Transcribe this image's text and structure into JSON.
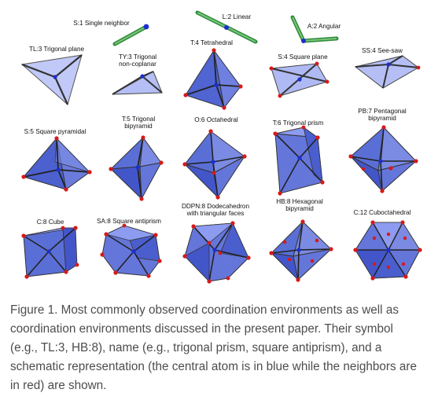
{
  "figure": {
    "labels": {
      "s1": "S:1 Single neighbor",
      "l2": "L:2 Linear",
      "a2": "A:2 Angular",
      "tl3": "TL:3 Trigonal plane",
      "ty3_line1": "TY:3 Trigonal",
      "ty3_line2": "non-coplanar",
      "t4": "T:4 Tetrahedral",
      "s4": "S:4 Square plane",
      "ss4": "SS:4 See-saw",
      "s5": "S:5 Square pyramidal",
      "t5_line1": "T:5 Trigonal",
      "t5_line2": "bipyramid",
      "o6": "O:6 Octahedral",
      "t6": "T:6 Trigonal prism",
      "pb7_line1": "PB:7 Pentagonal",
      "pb7_line2": "bipyramid",
      "c8": "C:8 Cube",
      "sa8": "SA:8 Square antiprism",
      "ddpn8_line1": "DDPN:8 Dodecahedron",
      "ddpn8_line2": "with triangular faces",
      "hb8_line1": "HB:8 Hexagonal",
      "hb8_line2": "bipyramid",
      "c12": "C:12 Cuboctahedral"
    },
    "colors": {
      "face": "#5a6fd6",
      "edge": "#4a4a4a",
      "central_atom": "#1d2fd0",
      "neighbor_atom": "#d61a1a",
      "bond": "#2e8b3a"
    }
  },
  "caption": "Figure 1. Most commonly observed coordination environments as well as coordination environments discussed in the present paper. Their symbol (e.g., TL:3, HB:8), name (e.g., trigonal prism, square antiprism), and a schematic representation (the central atom is in blue while the neighbors are in red) are shown."
}
